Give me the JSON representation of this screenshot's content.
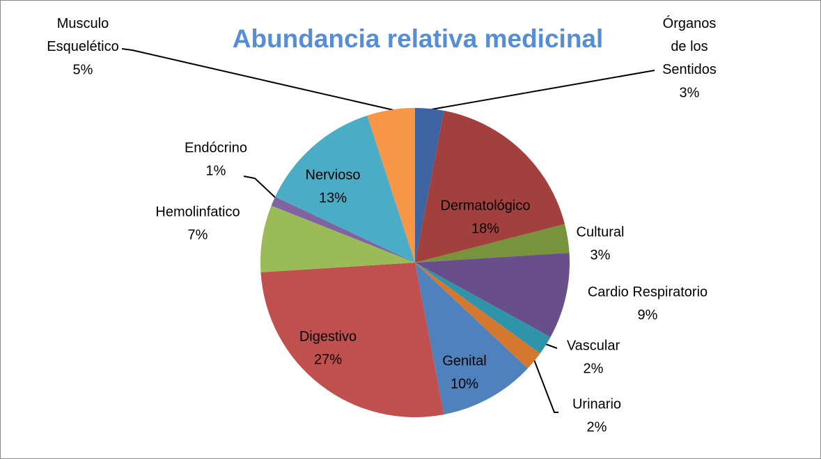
{
  "chart_data": {
    "type": "pie",
    "title": "Abundancia relativa medicinal",
    "categories": [
      "Órganos de los Sentidos",
      "Dermatológico",
      "Cultural",
      "Cardio Respiratorio",
      "Vascular",
      "Urinario",
      "Genital",
      "Digestivo",
      "Hemolinfatico",
      "Endócrino",
      "Nervioso",
      "Musculo Esquelético"
    ],
    "values": [
      3,
      18,
      3,
      9,
      2,
      2,
      10,
      27,
      7,
      1,
      13,
      5
    ],
    "value_labels": [
      "3%",
      "18%",
      "3%",
      "9%",
      "2%",
      "2%",
      "10%",
      "27%",
      "7%",
      "1%",
      "13%",
      "5%"
    ],
    "colors": [
      "#3d63a0",
      "#a2403d",
      "#77933c",
      "#684f8c",
      "#2f93a9",
      "#d5782f",
      "#4f81bd",
      "#c0504d",
      "#9bbb59",
      "#8064a2",
      "#4bacc6",
      "#f79646"
    ]
  }
}
